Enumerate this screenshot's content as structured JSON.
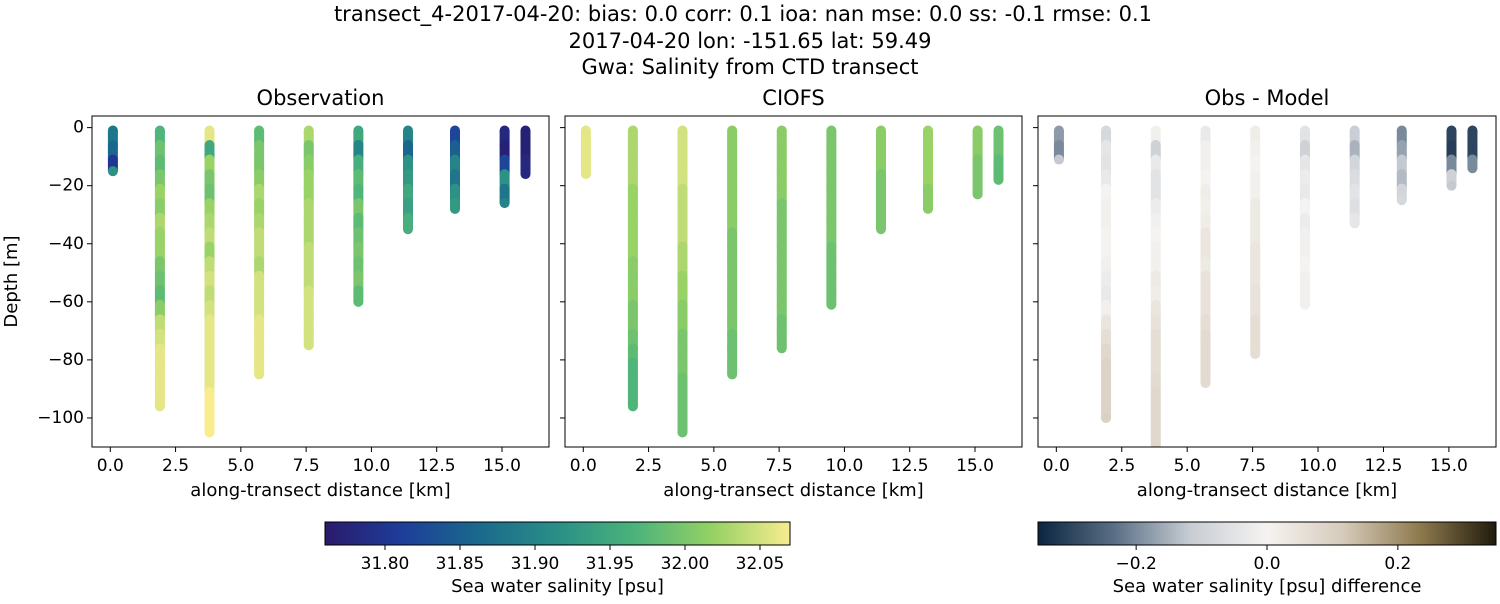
{
  "figure_title": [
    "transect_4-2017-04-20: bias: 0.0  corr: 0.1  ioa: nan  mse: 0.0  ss: -0.1  rmse: 0.1",
    "2017-04-20 lon: -151.65 lat: 59.49",
    "Gwa: Salinity from CTD transect"
  ],
  "colorbars": [
    {
      "label": "Sea water salinity [psu]",
      "clim": [
        31.76,
        32.07
      ],
      "ticks": [
        {
          "value": 31.8,
          "label": "31.80"
        },
        31.85,
        {
          "value": 31.9,
          "label": "31.90"
        },
        31.95,
        {
          "value": 32.0,
          "label": "32.00"
        },
        32.05
      ],
      "colors": [
        "#2a1a6c",
        "#1d3e9a",
        "#1a6a8c",
        "#2a8f87",
        "#4bb37a",
        "#96d164",
        "#f8ec8f"
      ]
    },
    {
      "label": "Sea water salinity [psu] difference",
      "clim": [
        -0.35,
        0.35
      ],
      "ticks": [
        {
          "value": -0.2,
          "label": "−0.2"
        },
        {
          "value": 0,
          "label": "0.0"
        },
        0.2
      ],
      "colors": [
        "#0b2540",
        "#5a6f85",
        "#c8cdd3",
        "#f5f3f1",
        "#d6cbbb",
        "#8f7a4e",
        "#1f1b0c"
      ]
    }
  ],
  "chart_data": [
    {
      "type": "scatter",
      "title": "Observation",
      "xlabel": "along-transect distance [km]",
      "ylabel": "Depth [m]",
      "colorbar": 0,
      "yticklabels": true,
      "xlim": [
        -0.7,
        16.8
      ],
      "ylim": [
        -110,
        4
      ],
      "xticks": [
        {
          "value": 0,
          "label": "0.0"
        },
        2.5,
        {
          "value": 5,
          "label": "5.0"
        },
        7.5,
        {
          "value": 10,
          "label": "10.0"
        },
        12.5,
        {
          "value": 15,
          "label": "15.0"
        }
      ],
      "yticks": [
        {
          "value": -100,
          "label": "−100"
        },
        {
          "value": -80,
          "label": "−80"
        },
        {
          "value": -60,
          "label": "−60"
        },
        {
          "value": -40,
          "label": "−40"
        },
        {
          "value": -20,
          "label": "−20"
        },
        0
      ],
      "series": [
        {
          "x": 0.1,
          "y": [
            -1,
            -6,
            -11,
            -15
          ],
          "values": [
            31.88,
            31.86,
            31.8,
            31.92
          ]
        },
        {
          "x": 1.9,
          "y": [
            -1,
            -6,
            -11,
            -16,
            -21,
            -26,
            -31,
            -36,
            -41,
            -46,
            -51,
            -56,
            -61,
            -66,
            -71,
            -76,
            -81,
            -86,
            -91,
            -96
          ],
          "values": [
            31.97,
            31.99,
            31.98,
            32.0,
            32.02,
            32.01,
            32.03,
            32.02,
            32.02,
            32.0,
            31.99,
            31.98,
            32.01,
            32.04,
            32.05,
            32.06,
            32.06,
            32.06,
            32.06,
            32.06
          ]
        },
        {
          "x": 3.8,
          "y": [
            -1,
            -6,
            -11,
            -16,
            -21,
            -26,
            -31,
            -36,
            -41,
            -46,
            -51,
            -56,
            -61,
            -66,
            -71,
            -76,
            -81,
            -86,
            -91,
            -96,
            -101,
            -105
          ],
          "values": [
            32.06,
            31.95,
            32.02,
            32.0,
            31.99,
            32.02,
            32.03,
            32.04,
            32.02,
            32.04,
            32.05,
            32.04,
            32.05,
            32.06,
            32.06,
            32.06,
            32.06,
            32.06,
            32.07,
            32.07,
            32.07,
            32.07
          ]
        },
        {
          "x": 5.7,
          "y": [
            -1,
            -6,
            -11,
            -16,
            -21,
            -26,
            -31,
            -36,
            -41,
            -46,
            -51,
            -56,
            -61,
            -66,
            -71,
            -76,
            -81,
            -85
          ],
          "values": [
            31.98,
            32.0,
            32.0,
            32.01,
            32.03,
            32.02,
            32.03,
            32.04,
            32.04,
            32.03,
            32.05,
            32.05,
            32.05,
            32.06,
            32.06,
            32.06,
            32.06,
            32.06
          ]
        },
        {
          "x": 7.6,
          "y": [
            -1,
            -6,
            -11,
            -16,
            -21,
            -26,
            -31,
            -36,
            -41,
            -46,
            -51,
            -56,
            -61,
            -66,
            -71,
            -75
          ],
          "values": [
            32.03,
            32.0,
            32.01,
            32.02,
            32.02,
            32.03,
            32.03,
            32.03,
            32.04,
            32.04,
            32.04,
            32.05,
            32.05,
            32.05,
            32.05,
            32.05
          ]
        },
        {
          "x": 9.5,
          "y": [
            -1,
            -6,
            -11,
            -16,
            -21,
            -26,
            -31,
            -36,
            -41,
            -46,
            -51,
            -56,
            -60
          ],
          "values": [
            31.95,
            31.9,
            31.96,
            31.98,
            31.97,
            32.0,
            31.98,
            31.99,
            32.0,
            31.99,
            32.0,
            31.98,
            31.98
          ]
        },
        {
          "x": 11.4,
          "y": [
            -1,
            -6,
            -11,
            -16,
            -21,
            -26,
            -31,
            -35
          ],
          "values": [
            31.9,
            31.86,
            31.92,
            31.93,
            31.95,
            31.94,
            31.96,
            31.96
          ]
        },
        {
          "x": 13.2,
          "y": [
            -1,
            -6,
            -11,
            -16,
            -21,
            -26,
            -28
          ],
          "values": [
            31.82,
            31.85,
            31.9,
            31.88,
            31.92,
            31.93,
            31.93
          ]
        },
        {
          "x": 15.1,
          "y": [
            -1,
            -6,
            -11,
            -16,
            -21,
            -26
          ],
          "values": [
            31.78,
            31.77,
            31.82,
            31.92,
            31.88,
            31.9
          ]
        },
        {
          "x": 15.9,
          "y": [
            -1,
            -6,
            -11,
            -16
          ],
          "values": [
            31.77,
            31.77,
            31.78,
            31.78
          ]
        }
      ]
    },
    {
      "type": "scatter",
      "title": "CIOFS",
      "xlabel": "along-transect distance [km]",
      "colorbar": 0,
      "yticklabels": false,
      "xlim": [
        -0.7,
        16.8
      ],
      "ylim": [
        -110,
        4
      ],
      "xticks": [
        {
          "value": 0,
          "label": "0.0"
        },
        2.5,
        {
          "value": 5,
          "label": "5.0"
        },
        7.5,
        {
          "value": 10,
          "label": "10.0"
        },
        12.5,
        {
          "value": 15,
          "label": "15.0"
        }
      ],
      "yticks": [
        -100,
        -80,
        -60,
        -40,
        -20,
        0
      ],
      "series": [
        {
          "x": 0.1,
          "y": [
            -1,
            -6,
            -11,
            -16
          ],
          "values": [
            32.06,
            32.06,
            32.06,
            32.06
          ]
        },
        {
          "x": 1.9,
          "y": [
            -1,
            -6,
            -11,
            -16,
            -21,
            -26,
            -31,
            -36,
            -41,
            -46,
            -51,
            -56,
            -61,
            -66,
            -71,
            -76,
            -81,
            -86,
            -91,
            -96
          ],
          "values": [
            32.03,
            32.03,
            32.03,
            32.03,
            32.02,
            32.02,
            32.02,
            32.02,
            32.02,
            32.01,
            32.01,
            32.01,
            32.0,
            32.0,
            31.99,
            31.98,
            31.97,
            31.97,
            31.97,
            31.97
          ]
        },
        {
          "x": 3.8,
          "y": [
            -1,
            -6,
            -11,
            -16,
            -21,
            -26,
            -31,
            -36,
            -41,
            -46,
            -51,
            -56,
            -61,
            -66,
            -71,
            -76,
            -81,
            -86,
            -91,
            -96,
            -101,
            -105
          ],
          "values": [
            32.05,
            32.05,
            32.05,
            32.05,
            32.04,
            32.04,
            32.04,
            32.04,
            32.03,
            32.03,
            32.02,
            32.02,
            32.01,
            32.01,
            32.0,
            32.0,
            32.0,
            31.99,
            31.99,
            31.99,
            31.99,
            31.99
          ]
        },
        {
          "x": 5.7,
          "y": [
            -1,
            -6,
            -11,
            -16,
            -21,
            -26,
            -31,
            -36,
            -41,
            -46,
            -51,
            -56,
            -61,
            -66,
            -71,
            -76,
            -81,
            -85
          ],
          "values": [
            32.01,
            32.01,
            32.01,
            32.01,
            32.01,
            32.01,
            32.01,
            32.0,
            32.0,
            32.0,
            32.0,
            32.0,
            32.0,
            32.0,
            31.99,
            31.99,
            31.99,
            31.99
          ]
        },
        {
          "x": 7.6,
          "y": [
            -1,
            -6,
            -11,
            -16,
            -21,
            -26,
            -31,
            -36,
            -41,
            -46,
            -51,
            -56,
            -61,
            -66,
            -71,
            -76
          ],
          "values": [
            32.01,
            32.01,
            32.01,
            32.01,
            32.01,
            32.0,
            32.0,
            32.0,
            32.0,
            32.0,
            32.0,
            32.0,
            32.0,
            31.99,
            31.99,
            31.99
          ]
        },
        {
          "x": 9.5,
          "y": [
            -1,
            -6,
            -11,
            -16,
            -21,
            -26,
            -31,
            -36,
            -41,
            -46,
            -51,
            -56,
            -61
          ],
          "values": [
            32.0,
            32.0,
            32.0,
            32.0,
            32.0,
            32.0,
            32.0,
            32.0,
            31.99,
            31.99,
            31.99,
            31.99,
            31.99
          ]
        },
        {
          "x": 11.4,
          "y": [
            -1,
            -6,
            -11,
            -16,
            -21,
            -26,
            -31,
            -35
          ],
          "values": [
            32.01,
            32.01,
            32.01,
            32.0,
            32.0,
            32.0,
            32.0,
            32.0
          ]
        },
        {
          "x": 13.2,
          "y": [
            -1,
            -6,
            -11,
            -16,
            -21,
            -26,
            -28
          ],
          "values": [
            32.02,
            32.02,
            32.02,
            32.02,
            32.01,
            32.01,
            32.01
          ]
        },
        {
          "x": 15.1,
          "y": [
            -1,
            -6,
            -11,
            -16,
            -21,
            -23
          ],
          "values": [
            32.01,
            32.01,
            32.0,
            32.0,
            32.0,
            32.0
          ]
        },
        {
          "x": 15.9,
          "y": [
            -1,
            -6,
            -11,
            -16,
            -18
          ],
          "values": [
            31.99,
            31.99,
            31.98,
            31.98,
            31.98
          ]
        }
      ]
    },
    {
      "type": "scatter",
      "title": "Obs - Model",
      "xlabel": "along-transect distance [km]",
      "colorbar": 1,
      "yticklabels": false,
      "xlim": [
        -0.7,
        16.8
      ],
      "ylim": [
        -110,
        4
      ],
      "xticks": [
        {
          "value": 0,
          "label": "0.0"
        },
        2.5,
        {
          "value": 5,
          "label": "5.0"
        },
        7.5,
        {
          "value": 10,
          "label": "10.0"
        },
        12.5,
        {
          "value": 15,
          "label": "15.0"
        }
      ],
      "yticks": [
        -100,
        -80,
        -60,
        -40,
        -20,
        0
      ],
      "series": [
        {
          "x": 0.1,
          "y": [
            -1,
            -6,
            -11
          ],
          "values": [
            -0.18,
            -0.2,
            -0.12
          ]
        },
        {
          "x": 1.9,
          "y": [
            -1,
            -6,
            -11,
            -16,
            -21,
            -26,
            -31,
            -36,
            -41,
            -46,
            -51,
            -56,
            -61,
            -66,
            -71,
            -76,
            -81,
            -86,
            -91,
            -96,
            -100
          ],
          "values": [
            -0.08,
            -0.04,
            -0.05,
            -0.03,
            0.0,
            -0.01,
            0.01,
            0.0,
            0.0,
            -0.01,
            -0.02,
            -0.03,
            0.01,
            0.04,
            0.06,
            0.08,
            0.09,
            0.09,
            0.09,
            0.09,
            0.1
          ]
        },
        {
          "x": 3.8,
          "y": [
            -1,
            -6,
            -11,
            -16,
            -21,
            -26,
            -31,
            -36,
            -41,
            -46,
            -51,
            -56,
            -61,
            -66,
            -71,
            -76,
            -81,
            -86,
            -91,
            -96,
            -101,
            -106,
            -110
          ],
          "values": [
            0.01,
            -0.1,
            -0.03,
            -0.05,
            -0.05,
            -0.02,
            -0.01,
            0.0,
            -0.01,
            0.01,
            0.03,
            0.02,
            0.04,
            0.05,
            0.06,
            0.06,
            0.06,
            0.07,
            0.08,
            0.08,
            0.08,
            0.08,
            0.08
          ]
        },
        {
          "x": 5.7,
          "y": [
            -1,
            -6,
            -11,
            -16,
            -21,
            -26,
            -31,
            -36,
            -41,
            -46,
            -51,
            -56,
            -61,
            -66,
            -71,
            -76,
            -81,
            -86,
            -88
          ],
          "values": [
            -0.03,
            -0.01,
            -0.01,
            0.0,
            0.02,
            0.01,
            0.02,
            0.04,
            0.04,
            0.03,
            0.05,
            0.05,
            0.05,
            0.06,
            0.07,
            0.07,
            0.07,
            0.07,
            0.07
          ]
        },
        {
          "x": 7.6,
          "y": [
            -1,
            -6,
            -11,
            -16,
            -21,
            -26,
            -31,
            -36,
            -41,
            -46,
            -51,
            -56,
            -61,
            -66,
            -71,
            -76,
            -78
          ],
          "values": [
            0.02,
            -0.01,
            0.0,
            0.01,
            0.01,
            0.03,
            0.03,
            0.03,
            0.04,
            0.04,
            0.04,
            0.05,
            0.05,
            0.06,
            0.06,
            0.06,
            0.06
          ]
        },
        {
          "x": 9.5,
          "y": [
            -1,
            -6,
            -11,
            -16,
            -21,
            -26,
            -31,
            -36,
            -41,
            -46,
            -51,
            -56,
            -61
          ],
          "values": [
            -0.05,
            -0.1,
            -0.04,
            -0.02,
            -0.03,
            0.0,
            -0.02,
            -0.01,
            0.01,
            0.0,
            0.01,
            -0.01,
            -0.01
          ]
        },
        {
          "x": 11.4,
          "y": [
            -1,
            -6,
            -11,
            -16,
            -21,
            -26,
            -31,
            -33
          ],
          "values": [
            -0.11,
            -0.15,
            -0.09,
            -0.07,
            -0.05,
            -0.06,
            -0.04,
            -0.04
          ]
        },
        {
          "x": 13.2,
          "y": [
            -1,
            -6,
            -11,
            -16,
            -21,
            -25
          ],
          "values": [
            -0.2,
            -0.17,
            -0.12,
            -0.14,
            -0.09,
            -0.08
          ]
        },
        {
          "x": 15.1,
          "y": [
            -1,
            -6,
            -11,
            -16,
            -20
          ],
          "values": [
            -0.3,
            -0.31,
            -0.2,
            -0.1,
            -0.12
          ]
        },
        {
          "x": 15.9,
          "y": [
            -1,
            -6,
            -11,
            -14
          ],
          "values": [
            -0.3,
            -0.3,
            -0.2,
            -0.2
          ]
        }
      ]
    }
  ]
}
